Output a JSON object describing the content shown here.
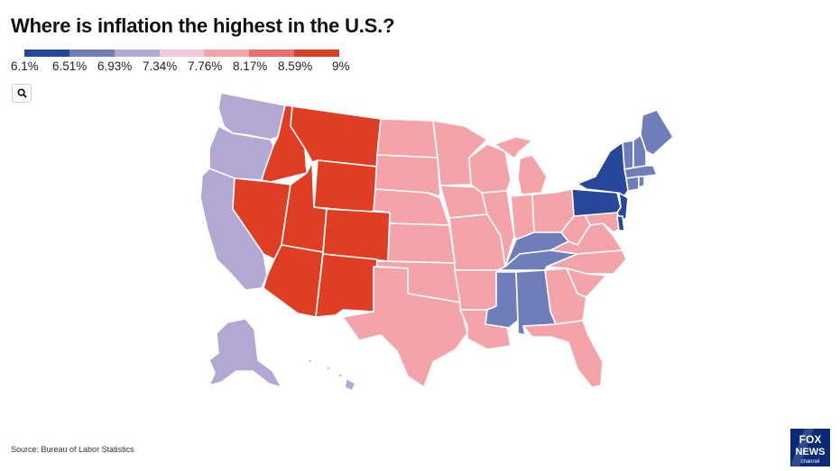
{
  "title": "Where is inflation the highest in the U.S.?",
  "legend": {
    "colors": [
      "#27479b",
      "#6f7ebb",
      "#b3a8d4",
      "#f3c7e2",
      "#f4a4a9",
      "#ec6e6c",
      "#e03e24"
    ],
    "labels": [
      "6.1%",
      "6.51%",
      "6.93%",
      "7.34%",
      "7.76%",
      "8.17%",
      "8.59%",
      "9%"
    ]
  },
  "search": {
    "icon": "search-icon"
  },
  "regions": {
    "darkest_blue": [
      "New York",
      "Pennsylvania",
      "New Jersey",
      "Delaware"
    ],
    "medium_blue": [
      "Maine",
      "Vermont",
      "New Hampshire",
      "Massachusetts",
      "Connecticut",
      "Rhode Island",
      "Kentucky",
      "Tennessee",
      "Mississippi",
      "Alabama"
    ],
    "lavender": [
      "Washington",
      "Oregon",
      "California",
      "Alaska",
      "Hawaii"
    ],
    "red": [
      "Montana",
      "Idaho",
      "Wyoming",
      "Nevada",
      "Utah",
      "Colorado",
      "Arizona",
      "New Mexico"
    ],
    "pink": [
      "North Dakota",
      "South Dakota",
      "Nebraska",
      "Kansas",
      "Oklahoma",
      "Texas",
      "Minnesota",
      "Iowa",
      "Missouri",
      "Arkansas",
      "Louisiana",
      "Wisconsin",
      "Illinois",
      "Michigan",
      "Indiana",
      "Ohio",
      "West Virginia",
      "Virginia",
      "Maryland",
      "North Carolina",
      "South Carolina",
      "Georgia",
      "Florida"
    ]
  },
  "source": "Source: Bureau of Labor Statistics",
  "logo": {
    "line1": "FOX",
    "line2": "NEWS",
    "line3": "channel"
  }
}
